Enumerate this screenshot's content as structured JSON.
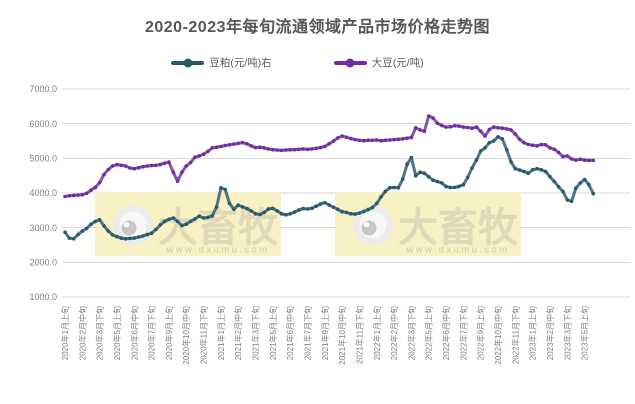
{
  "title": "2020-2023年每旬流通领域产品市场价格走势图",
  "legend": {
    "items": [
      {
        "label": "豆粕(元/吨)右",
        "color": "#27596B"
      },
      {
        "label": "大豆(元/吨)",
        "color": "#6F2DA0"
      }
    ]
  },
  "watermark": {
    "brand_text": "大畜牧",
    "site_text": "www.dxumu.com",
    "box_color": "#F6EFBE",
    "brand_color": "#DBD5B8",
    "site_color": "#CEC8A6"
  },
  "chart_data": {
    "type": "line",
    "title": "2020-2023年每旬流通领域产品市场价格走势图",
    "xlabel": "",
    "ylabel": "",
    "ylim": [
      1000,
      7000
    ],
    "y_step": 1000,
    "grid": true,
    "legend_position": "top",
    "y_tick_labels": [
      "7000.0",
      "6000.0",
      "5000.0",
      "4000.0",
      "3000.0",
      "2000.0",
      "1000.0"
    ],
    "x_label_every_n_points": 4,
    "x_tick_labels": [
      "2020年1月上旬",
      "2020年2月中旬",
      "2020年3月下旬",
      "2020年5月上旬",
      "2020年6月中旬",
      "2020年7月下旬",
      "2020年9月上旬",
      "2020年10月中旬",
      "2020年11月下旬",
      "2021年1月上旬",
      "2021年2月中旬",
      "2021年3月下旬",
      "2021年5月上旬",
      "2021年6月中旬",
      "2021年7月下旬",
      "2021年9月上旬",
      "2021年10月中旬",
      "2021年11月下旬",
      "2022年1月上旬",
      "2022年2月中旬",
      "2022年3月下旬",
      "2022年5月上旬",
      "2022年6月中旬",
      "2022年7月下旬",
      "2022年9月上旬",
      "2022年10月中旬",
      "2022年11月下旬",
      "2023年1月上旬",
      "2023年2月中旬",
      "2023年3月下旬",
      "2023年5月上旬"
    ],
    "series": [
      {
        "name": "豆粕(元/吨)右",
        "color": "#27596B",
        "values": [
          2870,
          2700,
          2680,
          2800,
          2900,
          2980,
          3100,
          3180,
          3230,
          3050,
          2900,
          2790,
          2740,
          2700,
          2680,
          2690,
          2700,
          2730,
          2760,
          2800,
          2840,
          2950,
          3080,
          3180,
          3240,
          3280,
          3180,
          3060,
          3100,
          3180,
          3250,
          3330,
          3280,
          3300,
          3340,
          3600,
          4150,
          4100,
          3700,
          3530,
          3650,
          3600,
          3550,
          3480,
          3400,
          3380,
          3440,
          3540,
          3560,
          3480,
          3400,
          3370,
          3400,
          3450,
          3510,
          3550,
          3540,
          3560,
          3620,
          3680,
          3720,
          3650,
          3590,
          3530,
          3460,
          3440,
          3400,
          3390,
          3420,
          3470,
          3520,
          3580,
          3700,
          3890,
          4050,
          4150,
          4160,
          4150,
          4400,
          4830,
          5020,
          4500,
          4600,
          4570,
          4470,
          4370,
          4330,
          4290,
          4190,
          4160,
          4160,
          4190,
          4240,
          4450,
          4720,
          4950,
          5210,
          5300,
          5450,
          5500,
          5620,
          5560,
          5250,
          4900,
          4700,
          4660,
          4620,
          4570,
          4670,
          4700,
          4670,
          4620,
          4470,
          4330,
          4180,
          4040,
          3800,
          3760,
          4140,
          4290,
          4390,
          4240,
          3980
        ]
      },
      {
        "name": "大豆(元/吨)",
        "color": "#6F2DA0",
        "values": [
          3900,
          3920,
          3930,
          3940,
          3950,
          3990,
          4080,
          4160,
          4300,
          4530,
          4680,
          4780,
          4820,
          4800,
          4780,
          4720,
          4700,
          4730,
          4760,
          4780,
          4790,
          4800,
          4820,
          4860,
          4890,
          4600,
          4340,
          4600,
          4780,
          4880,
          5030,
          5070,
          5120,
          5200,
          5300,
          5320,
          5340,
          5370,
          5390,
          5410,
          5430,
          5450,
          5420,
          5360,
          5310,
          5320,
          5300,
          5270,
          5250,
          5240,
          5230,
          5240,
          5250,
          5250,
          5260,
          5270,
          5260,
          5270,
          5290,
          5310,
          5340,
          5420,
          5500,
          5590,
          5640,
          5610,
          5570,
          5540,
          5520,
          5510,
          5520,
          5520,
          5530,
          5510,
          5520,
          5530,
          5540,
          5550,
          5560,
          5580,
          5600,
          5880,
          5820,
          5780,
          6220,
          6160,
          6010,
          5950,
          5900,
          5910,
          5940,
          5930,
          5900,
          5890,
          5870,
          5900,
          5780,
          5640,
          5830,
          5900,
          5880,
          5870,
          5850,
          5820,
          5700,
          5550,
          5450,
          5400,
          5380,
          5360,
          5400,
          5390,
          5300,
          5260,
          5170,
          5050,
          5070,
          4980,
          4950,
          4975,
          4950,
          4940,
          4940
        ]
      }
    ]
  }
}
